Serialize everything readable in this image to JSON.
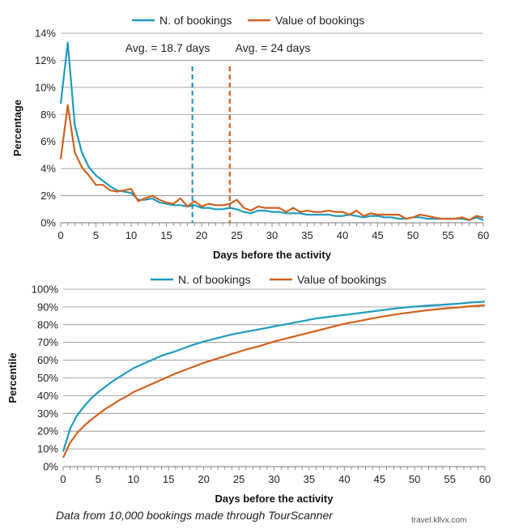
{
  "chart_data": [
    {
      "type": "line",
      "xlabel": "Days before the activity",
      "ylabel": "Percentage",
      "xlim": [
        0,
        60
      ],
      "ylim": [
        0,
        14
      ],
      "xticks": [
        0,
        5,
        10,
        15,
        20,
        25,
        30,
        35,
        40,
        45,
        50,
        55,
        60
      ],
      "yticks": [
        0,
        2,
        4,
        6,
        8,
        10,
        12,
        14
      ],
      "xtick_labels": [
        "0",
        "5",
        "10",
        "15",
        "20",
        "25",
        "30",
        "35",
        "40",
        "45",
        "50",
        "55",
        "60"
      ],
      "ytick_labels": [
        "0%",
        "2%",
        "4%",
        "6%",
        "8%",
        "10%",
        "12%",
        "14%"
      ],
      "grid": "horizontal",
      "legend_position": "top",
      "x": [
        0,
        1,
        2,
        3,
        4,
        5,
        6,
        7,
        8,
        9,
        10,
        11,
        12,
        13,
        14,
        15,
        16,
        17,
        18,
        19,
        20,
        21,
        22,
        23,
        24,
        25,
        26,
        27,
        28,
        29,
        30,
        31,
        32,
        33,
        34,
        35,
        36,
        37,
        38,
        39,
        40,
        41,
        42,
        43,
        44,
        45,
        46,
        47,
        48,
        49,
        50,
        51,
        52,
        53,
        54,
        55,
        56,
        57,
        58,
        59,
        60
      ],
      "series": [
        {
          "name": "N. of bookings",
          "color": "#1f9bbf",
          "values": [
            8.8,
            13.3,
            7.2,
            5.2,
            4.1,
            3.5,
            3.1,
            2.7,
            2.4,
            2.3,
            2.2,
            1.7,
            1.7,
            1.8,
            1.5,
            1.4,
            1.3,
            1.3,
            1.2,
            1.3,
            1.1,
            1.1,
            1.0,
            1.0,
            1.1,
            1.0,
            0.8,
            0.7,
            0.9,
            0.9,
            0.8,
            0.8,
            0.7,
            0.7,
            0.7,
            0.6,
            0.6,
            0.6,
            0.6,
            0.5,
            0.5,
            0.6,
            0.5,
            0.4,
            0.5,
            0.5,
            0.4,
            0.4,
            0.3,
            0.3,
            0.4,
            0.4,
            0.3,
            0.3,
            0.3,
            0.3,
            0.3,
            0.3,
            0.2,
            0.4,
            0.2
          ]
        },
        {
          "name": "Value of bookings",
          "color": "#d0611e",
          "values": [
            4.7,
            8.7,
            5.2,
            4.1,
            3.5,
            2.8,
            2.8,
            2.4,
            2.3,
            2.4,
            2.5,
            1.6,
            1.8,
            2.0,
            1.7,
            1.5,
            1.4,
            1.8,
            1.2,
            1.6,
            1.2,
            1.4,
            1.3,
            1.3,
            1.4,
            1.7,
            1.1,
            0.9,
            1.2,
            1.1,
            1.1,
            1.1,
            0.8,
            1.1,
            0.8,
            0.9,
            0.8,
            0.8,
            0.9,
            0.8,
            0.8,
            0.6,
            0.9,
            0.5,
            0.7,
            0.6,
            0.6,
            0.6,
            0.6,
            0.3,
            0.4,
            0.6,
            0.5,
            0.4,
            0.3,
            0.3,
            0.3,
            0.4,
            0.2,
            0.5,
            0.4
          ]
        }
      ],
      "annotations": [
        {
          "text": "Avg. = 18.7 days",
          "x": 18.7,
          "color": "#1f9bbf",
          "style": "dashed vertical line"
        },
        {
          "text": "Avg. = 24 days",
          "x": 24,
          "color": "#d0611e",
          "style": "dashed vertical line"
        }
      ]
    },
    {
      "type": "line",
      "xlabel": "Days before the activity",
      "ylabel": "Percentile",
      "xlim": [
        0,
        60
      ],
      "ylim": [
        0,
        100
      ],
      "xticks": [
        0,
        5,
        10,
        15,
        20,
        25,
        30,
        35,
        40,
        45,
        50,
        55,
        60
      ],
      "yticks": [
        0,
        10,
        20,
        30,
        40,
        50,
        60,
        70,
        80,
        90,
        100
      ],
      "xtick_labels": [
        "0",
        "5",
        "10",
        "15",
        "20",
        "25",
        "30",
        "35",
        "40",
        "45",
        "50",
        "55",
        "60"
      ],
      "ytick_labels": [
        "0%",
        "10%",
        "20%",
        "30%",
        "40%",
        "50%",
        "60%",
        "70%",
        "80%",
        "90%",
        "100%"
      ],
      "grid": "horizontal",
      "legend_position": "top",
      "x": [
        0,
        1,
        2,
        3,
        4,
        5,
        6,
        7,
        8,
        9,
        10,
        12,
        14,
        16,
        18,
        20,
        22,
        24,
        26,
        28,
        30,
        32,
        34,
        36,
        38,
        40,
        42,
        44,
        46,
        48,
        50,
        52,
        54,
        56,
        58,
        60
      ],
      "series": [
        {
          "name": "N. of bookings",
          "color": "#1f9bbf",
          "values": [
            8.5,
            21.5,
            29,
            34,
            38.5,
            42,
            45,
            48,
            50.5,
            53,
            55.5,
            59,
            62.5,
            65,
            68,
            70.5,
            72.5,
            74.5,
            76,
            77.5,
            79,
            80.5,
            82,
            83.5,
            84.5,
            85.5,
            86.5,
            87.5,
            88.5,
            89.5,
            90.2,
            90.8,
            91.3,
            91.8,
            92.5,
            93
          ]
        },
        {
          "name": "Value of bookings",
          "color": "#d0611e",
          "values": [
            5,
            13.5,
            19,
            23,
            26.5,
            29.5,
            32.5,
            35,
            37.5,
            39.5,
            42,
            45.5,
            49,
            52.5,
            55.5,
            58.5,
            61,
            63.5,
            66,
            68,
            70.5,
            72.5,
            74.5,
            76.5,
            78.5,
            80.5,
            82,
            83.5,
            85,
            86.2,
            87.2,
            88.2,
            89,
            89.7,
            90.4,
            91
          ]
        }
      ]
    }
  ],
  "caption": "Data from 10,000 bookings made through TourScanner",
  "watermark": "travel.kllvx.com"
}
